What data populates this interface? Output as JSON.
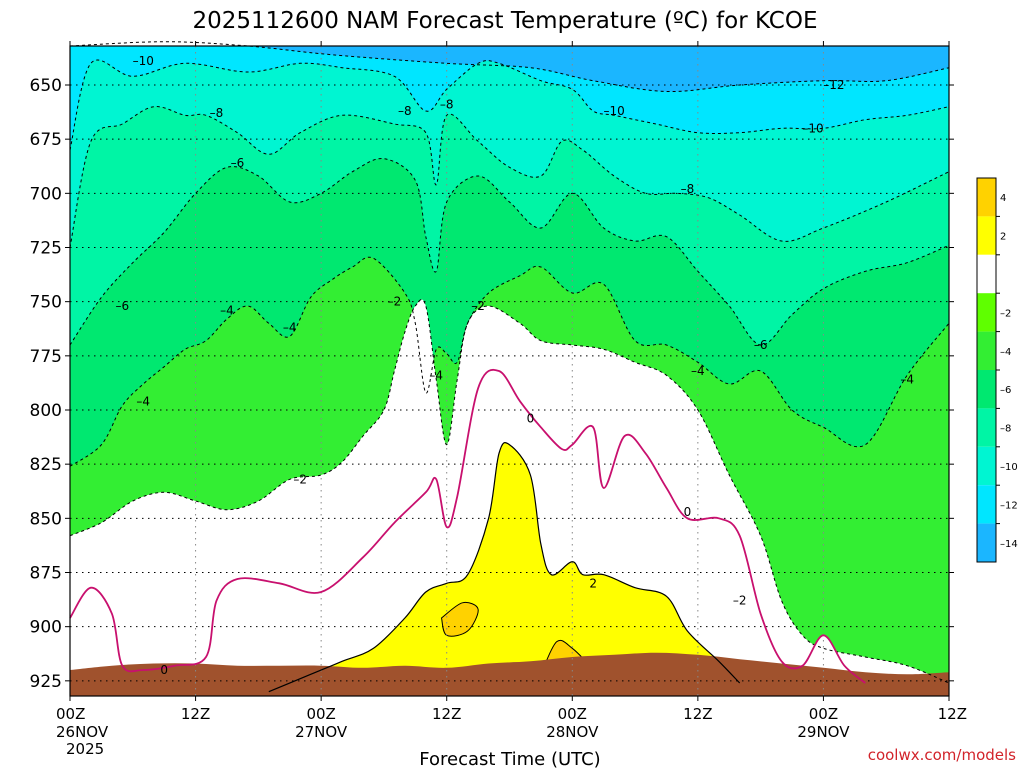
{
  "chart_data": {
    "type": "heatmap",
    "title": "2025112600 NAM Forecast Temperature (ºC) for KCOE",
    "xlabel": "Forecast Time (UTC)",
    "ylabel": "",
    "y_axis": {
      "ticks": [
        650,
        675,
        700,
        725,
        750,
        775,
        800,
        825,
        850,
        875,
        900,
        925
      ],
      "range_top": 632,
      "range_bottom": 932,
      "inverted": true
    },
    "x_axis": {
      "range_hours": [
        0,
        84
      ],
      "ticks": [
        {
          "hour": 0,
          "label": "00Z",
          "date": "26NOV",
          "year": "2025"
        },
        {
          "hour": 12,
          "label": "12Z"
        },
        {
          "hour": 24,
          "label": "00Z",
          "date": "27NOV"
        },
        {
          "hour": 36,
          "label": "12Z"
        },
        {
          "hour": 48,
          "label": "00Z",
          "date": "28NOV"
        },
        {
          "hour": 60,
          "label": "12Z"
        },
        {
          "hour": 72,
          "label": "00Z",
          "date": "29NOV"
        },
        {
          "hour": 84,
          "label": "12Z"
        }
      ]
    },
    "grid": true,
    "colorbar": {
      "bins": [
        {
          "color": "#ffd200",
          "label": "4"
        },
        {
          "color": "#ffff00",
          "label": "2"
        },
        {
          "color": "#ffffff",
          "label": ""
        },
        {
          "color": "#5fff00",
          "label": "–2"
        },
        {
          "color": "#33ee33",
          "label": "–4"
        },
        {
          "color": "#00e870",
          "label": "–6"
        },
        {
          "color": "#00f5a5",
          "label": "–8"
        },
        {
          "color": "#00f5d2",
          "label": "–10"
        },
        {
          "color": "#00e6ff",
          "label": "–12"
        },
        {
          "color": "#1bb6ff",
          "label": "–14"
        }
      ]
    },
    "contours": [
      {
        "level": -12,
        "label": "–12",
        "points": [
          [
            0,
            632
          ],
          [
            9,
            630
          ],
          [
            17,
            632
          ],
          [
            25,
            636
          ],
          [
            36,
            640
          ],
          [
            44,
            642
          ],
          [
            50,
            648
          ],
          [
            57,
            653
          ],
          [
            64,
            650
          ],
          [
            72,
            648
          ],
          [
            78,
            648
          ],
          [
            84,
            642
          ]
        ],
        "label_at": [
          73,
          650
        ]
      },
      {
        "level": -10,
        "label": "–10",
        "points": [
          [
            0,
            680
          ],
          [
            2,
            640
          ],
          [
            6,
            646
          ],
          [
            11,
            640
          ],
          [
            17,
            644
          ],
          [
            22,
            640
          ],
          [
            26,
            642
          ],
          [
            31,
            646
          ],
          [
            34,
            662
          ],
          [
            36,
            652
          ],
          [
            39,
            640
          ],
          [
            41,
            640
          ],
          [
            45,
            648
          ],
          [
            48,
            652
          ],
          [
            50,
            662
          ],
          [
            52,
            664
          ],
          [
            56,
            668
          ],
          [
            60,
            672
          ],
          [
            64,
            672
          ],
          [
            68,
            670
          ],
          [
            72,
            670
          ],
          [
            76,
            666
          ],
          [
            80,
            664
          ],
          [
            84,
            660
          ]
        ],
        "label_at": [
          7,
          639
        ],
        "extra_labels": [
          [
            52,
            662
          ],
          [
            71,
            670
          ]
        ]
      },
      {
        "level": -8,
        "label": "–8",
        "points": [
          [
            0,
            725
          ],
          [
            2,
            676
          ],
          [
            5,
            668
          ],
          [
            8,
            660
          ],
          [
            11,
            664
          ],
          [
            13,
            664
          ],
          [
            16,
            672
          ],
          [
            19,
            682
          ],
          [
            22,
            672
          ],
          [
            26,
            664
          ],
          [
            31,
            668
          ],
          [
            34,
            672
          ],
          [
            35,
            696
          ],
          [
            36,
            664
          ],
          [
            39,
            676
          ],
          [
            42,
            688
          ],
          [
            45,
            692
          ],
          [
            47,
            676
          ],
          [
            49,
            680
          ],
          [
            52,
            692
          ],
          [
            55,
            700
          ],
          [
            58,
            700
          ],
          [
            61,
            702
          ],
          [
            64,
            710
          ],
          [
            68,
            722
          ],
          [
            72,
            716
          ],
          [
            78,
            704
          ],
          [
            84,
            690
          ]
        ],
        "label_at": [
          14,
          663
        ],
        "extra_labels": [
          [
            32,
            662
          ],
          [
            36,
            659
          ],
          [
            59,
            698
          ]
        ]
      },
      {
        "level": -6,
        "label": "–6",
        "points": [
          [
            0,
            770
          ],
          [
            3,
            748
          ],
          [
            6,
            732
          ],
          [
            9,
            718
          ],
          [
            12,
            700
          ],
          [
            15,
            688
          ],
          [
            18,
            692
          ],
          [
            21,
            704
          ],
          [
            24,
            700
          ],
          [
            27,
            690
          ],
          [
            30,
            684
          ],
          [
            33,
            694
          ],
          [
            34,
            720
          ],
          [
            35,
            736
          ],
          [
            36,
            704
          ],
          [
            39,
            692
          ],
          [
            42,
            704
          ],
          [
            45,
            716
          ],
          [
            48,
            700
          ],
          [
            51,
            716
          ],
          [
            54,
            722
          ],
          [
            57,
            720
          ],
          [
            60,
            736
          ],
          [
            63,
            752
          ],
          [
            66,
            770
          ],
          [
            69,
            756
          ],
          [
            72,
            744
          ],
          [
            76,
            736
          ],
          [
            80,
            732
          ],
          [
            84,
            724
          ]
        ],
        "label_at": [
          16,
          686
        ],
        "extra_labels": [
          [
            5,
            752
          ],
          [
            66,
            770
          ]
        ]
      },
      {
        "level": -4,
        "label": "–4",
        "points": [
          [
            0,
            826
          ],
          [
            3,
            816
          ],
          [
            5,
            798
          ],
          [
            7,
            788
          ],
          [
            9,
            780
          ],
          [
            11,
            772
          ],
          [
            13,
            768
          ],
          [
            15,
            758
          ],
          [
            17,
            752
          ],
          [
            19,
            760
          ],
          [
            21,
            766
          ],
          [
            23,
            748
          ],
          [
            25,
            740
          ],
          [
            27,
            734
          ],
          [
            29,
            730
          ],
          [
            32,
            746
          ],
          [
            33,
            760
          ],
          [
            34,
            792
          ],
          [
            35,
            772
          ],
          [
            36,
            774
          ],
          [
            37,
            778
          ],
          [
            38,
            760
          ],
          [
            40,
            746
          ],
          [
            43,
            738
          ],
          [
            45,
            734
          ],
          [
            48,
            746
          ],
          [
            51,
            742
          ],
          [
            54,
            768
          ],
          [
            57,
            770
          ],
          [
            60,
            778
          ],
          [
            63,
            788
          ],
          [
            66,
            782
          ],
          [
            69,
            800
          ],
          [
            72,
            808
          ],
          [
            76,
            816
          ],
          [
            80,
            784
          ],
          [
            84,
            760
          ]
        ],
        "label_at": [
          7,
          796
        ],
        "extra_labels": [
          [
            15,
            754
          ],
          [
            21,
            762
          ],
          [
            35,
            784
          ],
          [
            60,
            782
          ],
          [
            80,
            786
          ]
        ]
      },
      {
        "level": -2,
        "label": "–2",
        "points": [
          [
            0,
            858
          ],
          [
            3,
            852
          ],
          [
            6,
            842
          ],
          [
            9,
            838
          ],
          [
            12,
            842
          ],
          [
            15,
            846
          ],
          [
            18,
            842
          ],
          [
            21,
            832
          ],
          [
            24,
            830
          ],
          [
            26,
            824
          ],
          [
            28,
            812
          ],
          [
            30,
            800
          ],
          [
            31,
            782
          ],
          [
            32,
            764
          ],
          [
            33,
            752
          ],
          [
            34,
            752
          ],
          [
            35,
            786
          ],
          [
            36,
            816
          ],
          [
            37,
            786
          ],
          [
            38,
            760
          ],
          [
            40,
            752
          ],
          [
            43,
            760
          ],
          [
            45,
            768
          ],
          [
            48,
            770
          ],
          [
            51,
            772
          ],
          [
            54,
            778
          ],
          [
            57,
            784
          ],
          [
            60,
            800
          ],
          [
            63,
            830
          ],
          [
            66,
            858
          ],
          [
            68,
            888
          ],
          [
            70,
            904
          ],
          [
            72,
            910
          ],
          [
            76,
            914
          ],
          [
            80,
            918
          ],
          [
            84,
            926
          ]
        ],
        "label_at": [
          22,
          832
        ],
        "extra_labels": [
          [
            31,
            750
          ],
          [
            39,
            752
          ],
          [
            64,
            888
          ]
        ]
      },
      {
        "level": 0,
        "label": "0",
        "points": [
          [
            0,
            896
          ],
          [
            2,
            882
          ],
          [
            4,
            894
          ],
          [
            5,
            918
          ],
          [
            7,
            920
          ],
          [
            10,
            918
          ],
          [
            13,
            914
          ],
          [
            14,
            888
          ],
          [
            16,
            878
          ],
          [
            20,
            880
          ],
          [
            24,
            884
          ],
          [
            28,
            868
          ],
          [
            31,
            852
          ],
          [
            34,
            838
          ],
          [
            35,
            832
          ],
          [
            36,
            854
          ],
          [
            37,
            840
          ],
          [
            39,
            790
          ],
          [
            41,
            782
          ],
          [
            43,
            796
          ],
          [
            45,
            808
          ],
          [
            47,
            818
          ],
          [
            48,
            816
          ],
          [
            50,
            808
          ],
          [
            51,
            836
          ],
          [
            53,
            812
          ],
          [
            55,
            820
          ],
          [
            57,
            836
          ],
          [
            59,
            850
          ],
          [
            62,
            850
          ],
          [
            64,
            858
          ],
          [
            66,
            894
          ],
          [
            68,
            916
          ],
          [
            70,
            918
          ],
          [
            72,
            904
          ],
          [
            74,
            918
          ],
          [
            76,
            926
          ]
        ],
        "label_at": [
          9,
          920
        ],
        "extra_labels": [
          [
            44,
            804
          ],
          [
            59,
            847
          ]
        ]
      },
      {
        "level": 2,
        "label": "2",
        "points": [
          [
            19,
            930
          ],
          [
            23,
            922
          ],
          [
            26,
            916
          ],
          [
            29,
            910
          ],
          [
            32,
            896
          ],
          [
            34,
            884
          ],
          [
            36,
            880
          ],
          [
            38,
            876
          ],
          [
            40,
            850
          ],
          [
            41,
            820
          ],
          [
            42,
            816
          ],
          [
            44,
            830
          ],
          [
            45,
            862
          ],
          [
            46,
            876
          ],
          [
            48,
            870
          ],
          [
            49,
            876
          ],
          [
            51,
            876
          ],
          [
            54,
            882
          ],
          [
            57,
            886
          ],
          [
            59,
            902
          ],
          [
            62,
            916
          ],
          [
            64,
            926
          ]
        ],
        "label_at": [
          50,
          880
        ]
      }
    ],
    "terrain_color": "#a0522d"
  },
  "credit": "coolwx.com/models"
}
